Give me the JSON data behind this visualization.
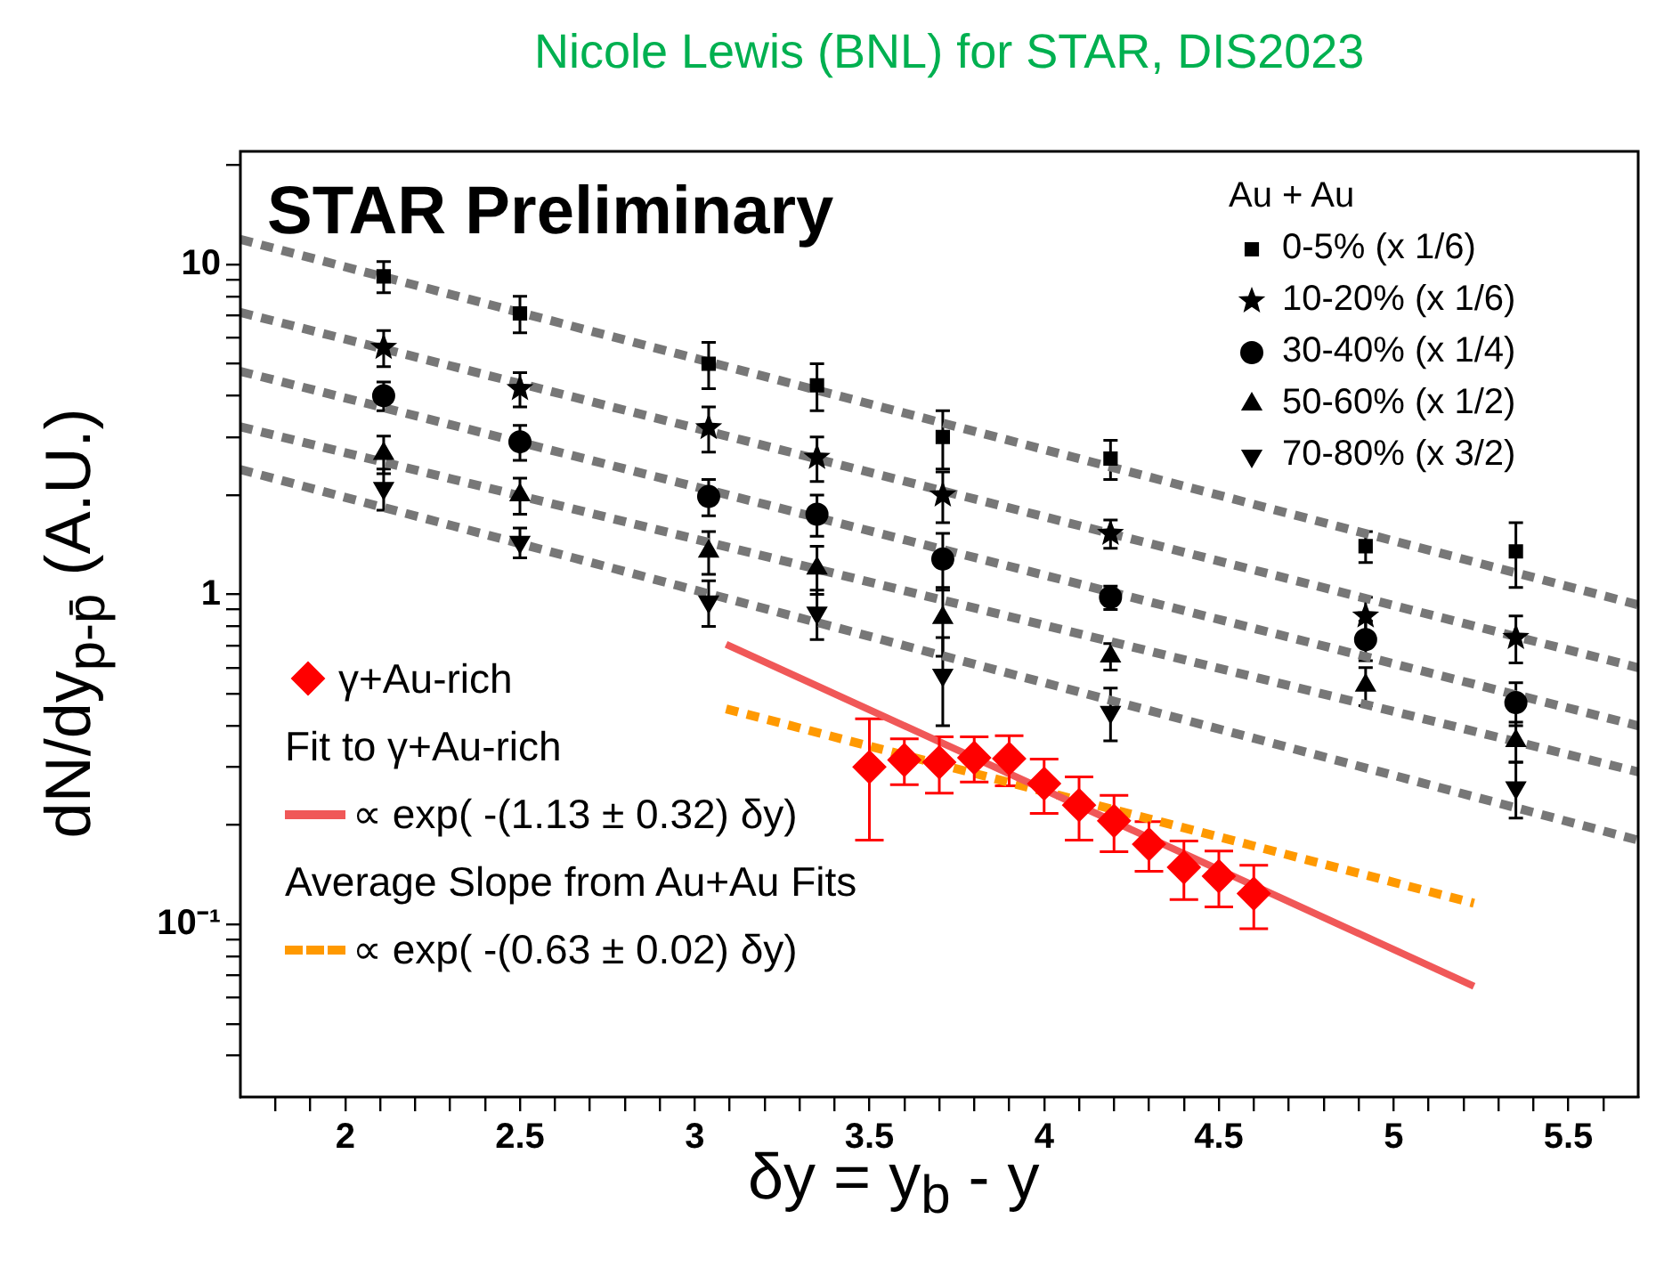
{
  "chart_data": {
    "type": "scatter",
    "title": "Nicole Lewis (BNL) for STAR, DIS2023",
    "xlabel": "δy = y$_{b}$ - y",
    "ylabel": "dN/dy$_{p-p̄}$ (A.U.)",
    "legend_title": "Au + Au",
    "legend": "top right",
    "log": "y",
    "grid": false,
    "xlim": [
      1.7,
      5.7
    ],
    "ylim": [
      0.03,
      22
    ],
    "xticks": [
      {
        "value": 1.8,
        "label": null
      },
      {
        "value": 1.9,
        "label": null
      },
      2,
      {
        "value": 2.1,
        "label": null
      },
      {
        "value": 2.2,
        "label": null
      },
      {
        "value": 2.3,
        "label": null
      },
      {
        "value": 2.4,
        "label": null
      },
      2.5,
      {
        "value": 2.6,
        "label": null
      },
      {
        "value": 2.7,
        "label": null
      },
      {
        "value": 2.8,
        "label": null
      },
      {
        "value": 2.9,
        "label": null
      },
      3,
      {
        "value": 3.1,
        "label": null
      },
      {
        "value": 3.2,
        "label": null
      },
      {
        "value": 3.3,
        "label": null
      },
      {
        "value": 3.4,
        "label": null
      },
      3.5,
      {
        "value": 3.6,
        "label": null
      },
      {
        "value": 3.7,
        "label": null
      },
      {
        "value": 3.8,
        "label": null
      },
      {
        "value": 3.9,
        "label": null
      },
      4,
      {
        "value": 4.1,
        "label": null
      },
      {
        "value": 4.2,
        "label": null
      },
      {
        "value": 4.3,
        "label": null
      },
      {
        "value": 4.4,
        "label": null
      },
      4.5,
      {
        "value": 4.6,
        "label": null
      },
      {
        "value": 4.7,
        "label": null
      },
      {
        "value": 4.8,
        "label": null
      },
      {
        "value": 4.9,
        "label": null
      },
      5,
      {
        "value": 5.1,
        "label": null
      },
      {
        "value": 5.2,
        "label": null
      },
      {
        "value": 5.3,
        "label": null
      },
      {
        "value": 5.4,
        "label": null
      },
      5.5,
      {
        "value": 5.6,
        "label": null
      }
    ],
    "yticks": [
      {
        "value": 0.04,
        "label": null
      },
      {
        "value": 0.05,
        "label": null
      },
      {
        "value": 0.06,
        "label": null
      },
      {
        "value": 0.07,
        "label": null
      },
      {
        "value": 0.08,
        "label": null
      },
      {
        "value": 0.09,
        "label": null
      },
      {
        "value": 0.1,
        "label": "10⁻¹"
      },
      {
        "value": 0.2,
        "label": null
      },
      {
        "value": 0.3,
        "label": null
      },
      {
        "value": 0.4,
        "label": null
      },
      {
        "value": 0.5,
        "label": null
      },
      {
        "value": 0.6,
        "label": null
      },
      {
        "value": 0.7,
        "label": null
      },
      {
        "value": 0.8,
        "label": null
      },
      {
        "value": 0.9,
        "label": null
      },
      1,
      {
        "value": 2,
        "label": null
      },
      {
        "value": 3,
        "label": null
      },
      {
        "value": 4,
        "label": null
      },
      {
        "value": 5,
        "label": null
      },
      {
        "value": 6,
        "label": null
      },
      {
        "value": 7,
        "label": null
      },
      {
        "value": 8,
        "label": null
      },
      {
        "value": 9,
        "label": null
      },
      10,
      {
        "value": 20,
        "label": null
      }
    ],
    "annotations": [
      "STAR Preliminary",
      "Fit to γ+Au-rich",
      "Average Slope from Au+Au Fits"
    ],
    "series": [
      {
        "name": "0-5% (x 1/6)",
        "type": "scatter",
        "marker": "square",
        "color": "#000000",
        "x": [
          2.11,
          2.5,
          3.04,
          3.35,
          3.71,
          4.19,
          4.92,
          5.35
        ],
        "values": [
          9.2,
          7.1,
          5.0,
          4.3,
          3.0,
          2.58,
          1.4,
          1.35
        ],
        "errors": [
          1.0,
          0.9,
          0.8,
          0.7,
          0.6,
          0.35,
          0.15,
          0.3
        ]
      },
      {
        "name": "10-20% (x 1/6)",
        "type": "scatter",
        "marker": "star",
        "color": "#000000",
        "x": [
          2.11,
          2.5,
          3.04,
          3.35,
          3.71,
          4.19,
          4.92,
          5.35
        ],
        "values": [
          5.6,
          4.2,
          3.2,
          2.6,
          2.0,
          1.53,
          0.86,
          0.74
        ],
        "errors": [
          0.7,
          0.5,
          0.5,
          0.4,
          0.35,
          0.15,
          0.12,
          0.12
        ]
      },
      {
        "name": "30-40% (x 1/4)",
        "type": "scatter",
        "marker": "circle",
        "color": "#000000",
        "x": [
          2.11,
          2.5,
          3.04,
          3.35,
          3.71,
          4.19,
          4.92,
          5.35
        ],
        "values": [
          4.0,
          2.9,
          1.98,
          1.75,
          1.28,
          0.98,
          0.73,
          0.47
        ],
        "errors": [
          0.4,
          0.35,
          0.25,
          0.25,
          0.25,
          0.08,
          0.1,
          0.07
        ]
      },
      {
        "name": "50-60% (x 1/2)",
        "type": "scatter",
        "marker": "triangle",
        "color": "#000000",
        "x": [
          2.11,
          2.5,
          3.04,
          3.35,
          3.71,
          4.19,
          4.92,
          5.35
        ],
        "values": [
          2.67,
          2.0,
          1.35,
          1.2,
          0.85,
          0.65,
          0.53,
          0.36
        ],
        "errors": [
          0.35,
          0.25,
          0.2,
          0.2,
          0.2,
          0.06,
          0.07,
          0.05
        ]
      },
      {
        "name": "70-80% (x 3/2)",
        "type": "scatter",
        "marker": "triangle_down",
        "color": "#000000",
        "x": [
          2.11,
          2.5,
          3.04,
          3.35,
          3.71,
          4.19,
          5.35
        ],
        "values": [
          2.1,
          1.44,
          0.95,
          0.88,
          0.57,
          0.44,
          0.26
        ],
        "errors": [
          0.3,
          0.15,
          0.15,
          0.15,
          0.17,
          0.08,
          0.05
        ]
      },
      {
        "type": "line",
        "marker": "none",
        "line_style": "dashed",
        "color": "#777777",
        "x": [
          1.7,
          5.7
        ],
        "values": [
          11.9,
          0.93
        ]
      },
      {
        "type": "line",
        "marker": "none",
        "line_style": "dashed",
        "color": "#777777",
        "x": [
          1.7,
          5.7
        ],
        "values": [
          7.15,
          0.6
        ]
      },
      {
        "type": "line",
        "marker": "none",
        "line_style": "dashed",
        "color": "#777777",
        "x": [
          1.7,
          5.7
        ],
        "values": [
          4.74,
          0.4
        ]
      },
      {
        "type": "line",
        "marker": "none",
        "line_style": "dashed",
        "color": "#777777",
        "x": [
          1.7,
          5.7
        ],
        "values": [
          3.22,
          0.29
        ]
      },
      {
        "type": "line",
        "marker": "none",
        "line_style": "dashed",
        "color": "#777777",
        "x": [
          1.7,
          5.7
        ],
        "values": [
          2.39,
          0.18
        ]
      },
      {
        "name": "γ+Au-rich",
        "type": "scatter",
        "marker": "diamond",
        "color": "#ff0000",
        "x": [
          3.5,
          3.6,
          3.7,
          3.8,
          3.9,
          4.0,
          4.1,
          4.2,
          4.3,
          4.4,
          4.5,
          4.6
        ],
        "values": [
          0.3,
          0.315,
          0.31,
          0.32,
          0.318,
          0.267,
          0.23,
          0.206,
          0.175,
          0.149,
          0.14,
          0.124
        ],
        "errors": [
          0.12,
          0.05,
          0.06,
          0.05,
          0.055,
          0.05,
          0.05,
          0.04,
          0.03,
          0.03,
          0.027,
          0.027
        ]
      },
      {
        "name": "∝ exp( -(1.13 ± 0.32) δy)",
        "type": "line",
        "marker": "none",
        "line_style": "solid",
        "color": "#f05858",
        "x": [
          3.09,
          5.23
        ],
        "values": [
          0.706,
          0.065
        ]
      },
      {
        "name": "∝ exp( -(0.63 ± 0.02) δy)",
        "type": "line",
        "marker": "none",
        "line_style": "dashed",
        "color": "#ff9900",
        "x": [
          3.09,
          5.23
        ],
        "values": [
          0.45,
          0.116
        ]
      }
    ]
  }
}
